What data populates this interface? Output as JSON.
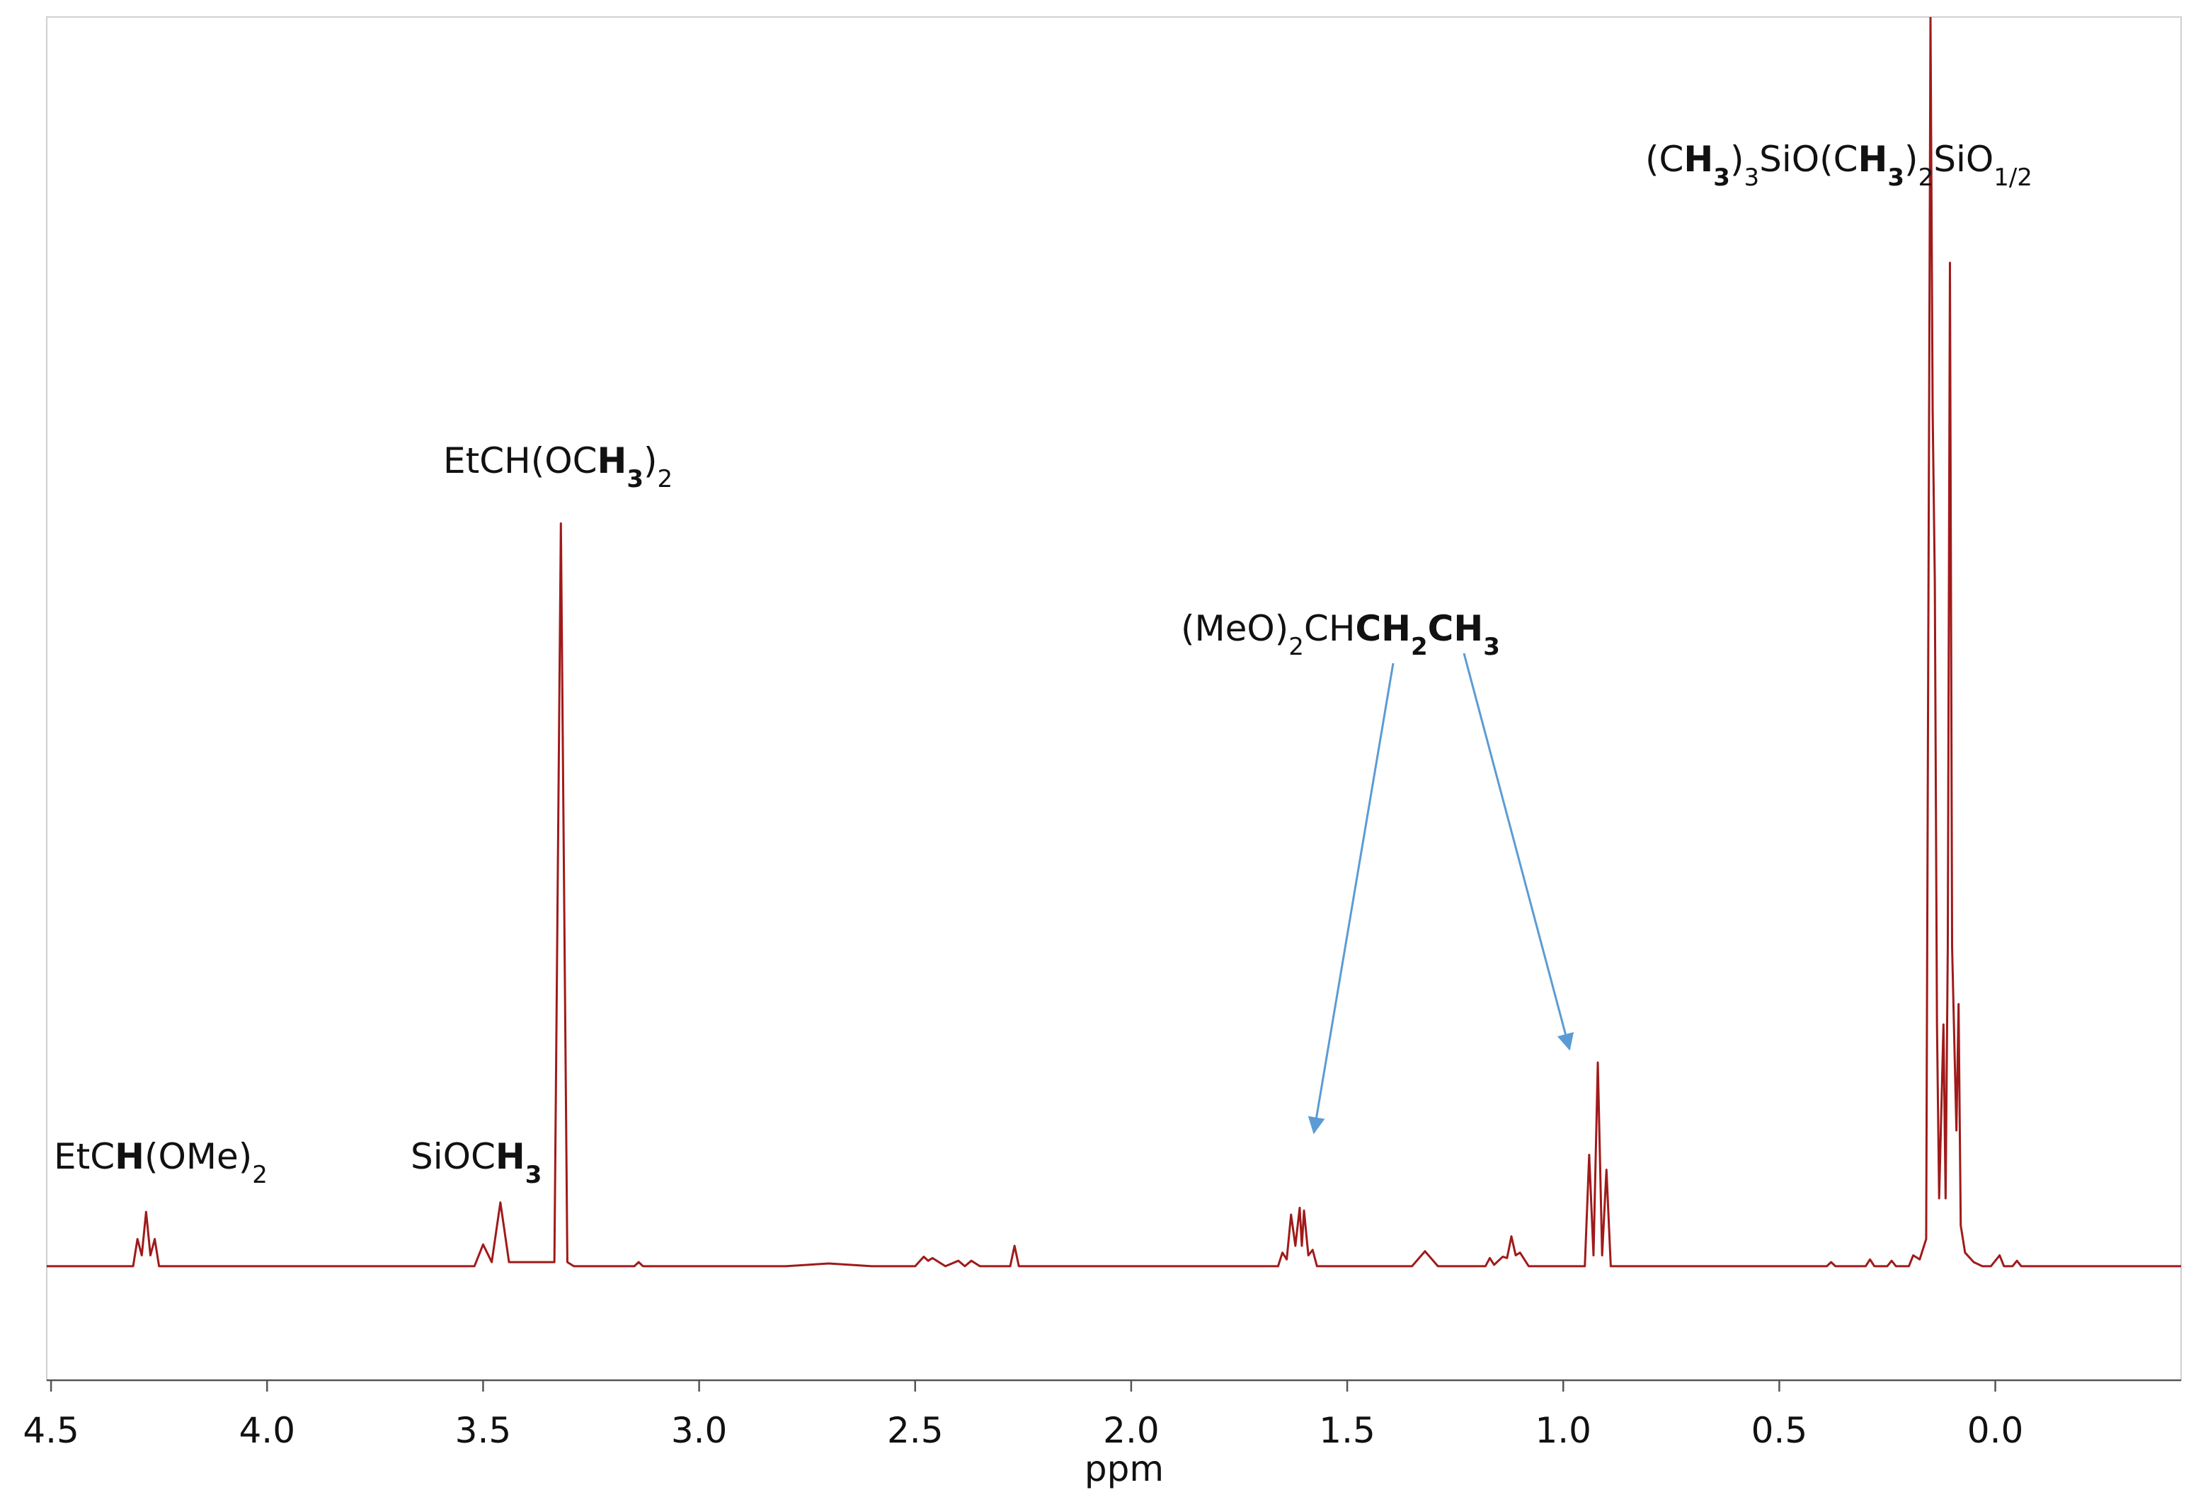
{
  "chart_data": {
    "type": "line",
    "xlabel": "ppm",
    "color": "#a01a1a",
    "xlim": [
      4.51,
      -0.43
    ],
    "ylim": [
      -8.4,
      92
    ],
    "xticks": [
      4.5,
      {
        "value": 4,
        "label": "4.0"
      },
      3.5,
      {
        "value": 3,
        "label": "3.0"
      },
      2.5,
      {
        "value": 2,
        "label": "2.0"
      },
      1.5,
      {
        "value": 1,
        "label": "1.0"
      },
      0.5,
      {
        "value": 0,
        "label": "0.0"
      }
    ],
    "x": [
      4.51,
      4.31,
      4.3,
      4.29,
      4.28,
      4.27,
      4.26,
      4.25,
      3.52,
      3.5,
      3.48,
      3.46,
      3.44,
      3.335,
      3.32,
      3.305,
      3.29,
      3.15,
      3.14,
      3.13,
      2.8,
      2.7,
      2.6,
      2.5,
      2.48,
      2.47,
      2.46,
      2.43,
      2.4,
      2.385,
      2.37,
      2.35,
      2.28,
      2.27,
      2.26,
      1.66,
      1.65,
      1.64,
      1.63,
      1.62,
      1.61,
      1.605,
      1.6,
      1.59,
      1.58,
      1.57,
      1.35,
      1.32,
      1.29,
      1.18,
      1.17,
      1.16,
      1.14,
      1.13,
      1.12,
      1.11,
      1.1,
      1.08,
      0.95,
      0.94,
      0.93,
      0.92,
      0.91,
      0.9,
      0.89,
      0.39,
      0.38,
      0.37,
      0.3,
      0.29,
      0.28,
      0.25,
      0.24,
      0.23,
      0.2,
      0.19,
      0.175,
      0.16,
      0.15,
      0.145,
      0.14,
      0.135,
      0.13,
      0.12,
      0.115,
      0.11,
      0.105,
      0.1,
      0.09,
      0.085,
      0.08,
      0.07,
      0.05,
      0.03,
      0.01,
      -0.01,
      -0.02,
      -0.04,
      -0.05,
      -0.06,
      -0.43
    ],
    "values": [
      0,
      0,
      2.0,
      0.8,
      4.0,
      0.8,
      2.0,
      0,
      0,
      1.6,
      0.3,
      4.7,
      0.3,
      0.3,
      54.7,
      0.3,
      0,
      0,
      0.3,
      0,
      0,
      0.2,
      0,
      0,
      0.7,
      0.4,
      0.6,
      0,
      0.4,
      0,
      0.4,
      0,
      0,
      1.5,
      0,
      0,
      1.0,
      0.5,
      3.8,
      1.5,
      4.3,
      1.5,
      4.1,
      0.8,
      1.2,
      0,
      0,
      1.1,
      0,
      0,
      0.6,
      0.1,
      0.7,
      0.6,
      2.2,
      0.8,
      1.0,
      0,
      0,
      8.2,
      0.8,
      15.0,
      0.8,
      7.1,
      0,
      0,
      0.3,
      0,
      0,
      0.5,
      0,
      0,
      0.4,
      0,
      0,
      0.8,
      0.5,
      2,
      92,
      63.0,
      50.4,
      17.8,
      5,
      17.8,
      5,
      23.5,
      73.9,
      23.5,
      10,
      19.3,
      3,
      1.0,
      0.3,
      0,
      0,
      0.8,
      0,
      0,
      0.4,
      0,
      0
    ],
    "annotations": [
      {
        "parts": [
          {
            "text": "EtC"
          },
          {
            "text": "H",
            "bold": true
          },
          {
            "text": "(OMe)"
          },
          {
            "text": "2",
            "sub": true
          }
        ]
      },
      {
        "parts": [
          {
            "text": "SiOC"
          },
          {
            "text": "H",
            "bold": true
          },
          {
            "text": "3",
            "bold": true,
            "sub": true
          }
        ]
      },
      {
        "parts": [
          {
            "text": "EtCH(OC"
          },
          {
            "text": "H",
            "bold": true
          },
          {
            "text": "3",
            "bold": true,
            "sub": true
          },
          {
            "text": ")"
          },
          {
            "text": "2",
            "sub": true
          }
        ]
      },
      {
        "parts": [
          {
            "text": "(MeO)"
          },
          {
            "text": "2",
            "sub": true
          },
          {
            "text": "CH"
          },
          {
            "text": "CH",
            "bold": true
          },
          {
            "text": "2",
            "bold": true,
            "sub": true
          },
          {
            "text": "CH",
            "bold": true
          },
          {
            "text": "3",
            "bold": true,
            "sub": true
          }
        ]
      },
      {
        "parts": [
          {
            "text": "(C"
          },
          {
            "text": "H",
            "bold": true
          },
          {
            "text": "3",
            "bold": true,
            "sub": true
          },
          {
            "text": ")"
          },
          {
            "text": "3",
            "sub": true
          },
          {
            "text": "SiO(C"
          },
          {
            "text": "H",
            "bold": true
          },
          {
            "text": "3",
            "bold": true,
            "sub": true
          },
          {
            "text": ")"
          },
          {
            "text": "2",
            "sub": true
          },
          {
            "text": "SiO"
          },
          {
            "text": "1/2",
            "sub": true
          }
        ]
      }
    ]
  }
}
